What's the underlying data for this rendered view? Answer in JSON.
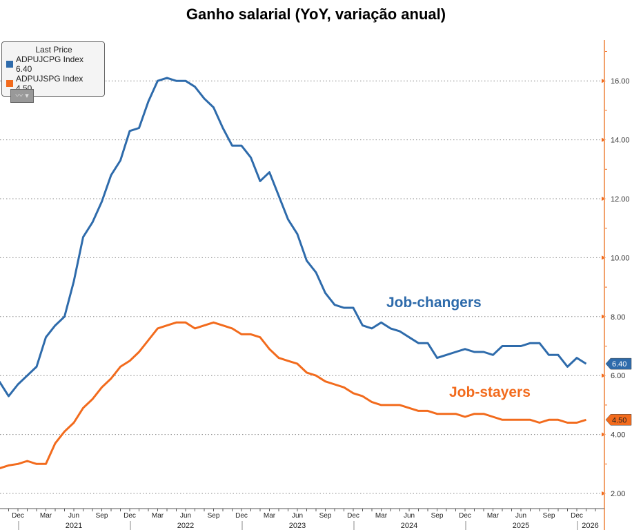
{
  "chart_data": {
    "type": "line",
    "title": "Ganho salarial (YoY, variação anual)",
    "xlabel": "",
    "ylabel": "",
    "ylim": [
      1.5,
      17
    ],
    "yticks": [
      "2.00",
      "4.00",
      "6.00",
      "8.00",
      "10.00",
      "12.00",
      "14.00",
      "16.00"
    ],
    "month_ticks": [
      "Dec",
      "Mar",
      "Jun",
      "Sep",
      "Dec",
      "Mar",
      "Jun",
      "Sep",
      "Dec",
      "Mar",
      "Jun",
      "Sep",
      "Dec",
      "Mar",
      "Jun",
      "Sep",
      "Dec",
      "Mar",
      "Jun",
      "Sep",
      "Dec"
    ],
    "year_labels": [
      "2021",
      "2022",
      "2023",
      "2024",
      "2025",
      "2026"
    ],
    "x_start": "Oct 2020",
    "x_end": "Jan 2026",
    "x_unit": "month",
    "legend": {
      "header": "Last Price",
      "position": "top-left",
      "entries": [
        {
          "label": "ADPUJCPG Index 6.40",
          "color": "#2e6bab"
        },
        {
          "label": "ADPUJSPG Index 4.50",
          "color": "#f26b1d"
        }
      ]
    },
    "annotations": [
      {
        "text": "Job-changers",
        "color": "#2e6bab"
      },
      {
        "text": "Job-stayers",
        "color": "#f26b1d"
      }
    ],
    "last_value_tags": [
      "6.40",
      "4.50"
    ],
    "series": [
      {
        "name": "ADPUJCPG Index",
        "color": "#2e6bab",
        "values": [
          5.8,
          5.3,
          5.7,
          6.0,
          6.3,
          7.3,
          7.7,
          8.0,
          9.2,
          10.7,
          11.2,
          11.9,
          12.8,
          13.3,
          14.3,
          14.4,
          15.3,
          16.0,
          16.1,
          16.0,
          16.0,
          15.8,
          15.4,
          15.1,
          14.4,
          13.8,
          13.8,
          13.4,
          12.6,
          12.9,
          12.1,
          11.3,
          10.8,
          9.9,
          9.5,
          8.8,
          8.4,
          8.3,
          8.3,
          7.7,
          7.6,
          7.8,
          7.6,
          7.5,
          7.3,
          7.1,
          7.1,
          6.6,
          6.7,
          6.8,
          6.9,
          6.8,
          6.8,
          6.7,
          7.0,
          7.0,
          7.0,
          7.1,
          7.1,
          6.7,
          6.7,
          6.3,
          6.6,
          6.4
        ]
      },
      {
        "name": "ADPUJSPG Index",
        "color": "#f26b1d",
        "values": [
          2.85,
          2.95,
          3.0,
          3.1,
          3.0,
          3.0,
          3.7,
          4.1,
          4.4,
          4.9,
          5.2,
          5.6,
          5.9,
          6.3,
          6.5,
          6.8,
          7.2,
          7.6,
          7.7,
          7.8,
          7.8,
          7.6,
          7.7,
          7.8,
          7.7,
          7.6,
          7.4,
          7.4,
          7.3,
          6.9,
          6.6,
          6.5,
          6.4,
          6.1,
          6.0,
          5.8,
          5.7,
          5.6,
          5.4,
          5.3,
          5.1,
          5.0,
          5.0,
          5.0,
          4.9,
          4.8,
          4.8,
          4.7,
          4.7,
          4.7,
          4.6,
          4.7,
          4.7,
          4.6,
          4.5,
          4.5,
          4.5,
          4.5,
          4.4,
          4.5,
          4.5,
          4.4,
          4.4,
          4.5
        ]
      }
    ]
  },
  "toolbar": {
    "chart_type_icon": "line-chart-icon"
  }
}
